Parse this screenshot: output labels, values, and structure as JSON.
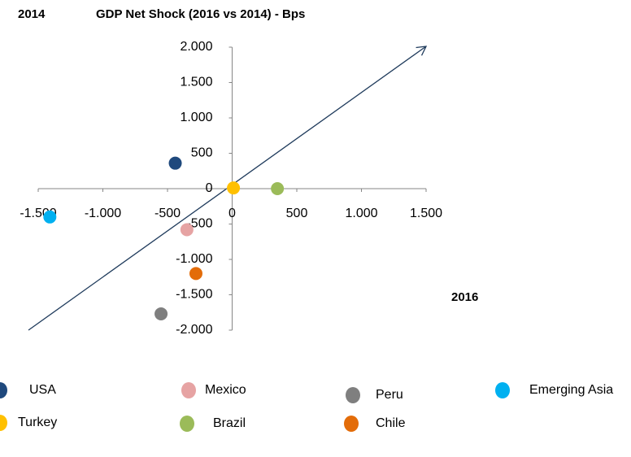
{
  "chart_data": {
    "type": "scatter",
    "title": "GDP Net Shock (2016 vs 2014) - Bps",
    "y_label": "2014",
    "x_label": "2016",
    "xlim": [
      -1500,
      1500
    ],
    "ylim": [
      -2000,
      2000
    ],
    "xticks": [
      {
        "value": -1500,
        "label": "-1.500"
      },
      {
        "value": -1000,
        "label": "-1.000"
      },
      -500,
      0,
      500,
      {
        "value": 1000,
        "label": "1.000"
      },
      {
        "value": 1500,
        "label": "1.500"
      }
    ],
    "yticks": [
      {
        "value": -2000,
        "label": "-2.000"
      },
      {
        "value": -1500,
        "label": "-1.500"
      },
      {
        "value": -1000,
        "label": "-1.000"
      },
      -500,
      0,
      500,
      {
        "value": 1000,
        "label": "1.000"
      },
      {
        "value": 1500,
        "label": "1.500"
      },
      {
        "value": 2000,
        "label": "2.000"
      }
    ],
    "series": [
      {
        "name": "USA",
        "color": "#1f497d",
        "x": [
          -440
        ],
        "values": [
          360
        ]
      },
      {
        "name": "Mexico",
        "color": "#e6a3a3",
        "x": [
          -350
        ],
        "values": [
          -580
        ]
      },
      {
        "name": "Peru",
        "color": "#7f7f7f",
        "x": [
          -550
        ],
        "values": [
          -1770
        ]
      },
      {
        "name": "Emerging Asia",
        "color": "#00b0f0",
        "x": [
          -1410
        ],
        "values": [
          -400
        ]
      },
      {
        "name": "Turkey",
        "color": "#ffc000",
        "x": [
          10
        ],
        "values": [
          10
        ]
      },
      {
        "name": "Brazil",
        "color": "#9bbb59",
        "x": [
          350
        ],
        "values": [
          0
        ]
      },
      {
        "name": "Chile",
        "color": "#e36c09",
        "x": [
          -280
        ],
        "values": [
          -1200
        ]
      }
    ]
  }
}
